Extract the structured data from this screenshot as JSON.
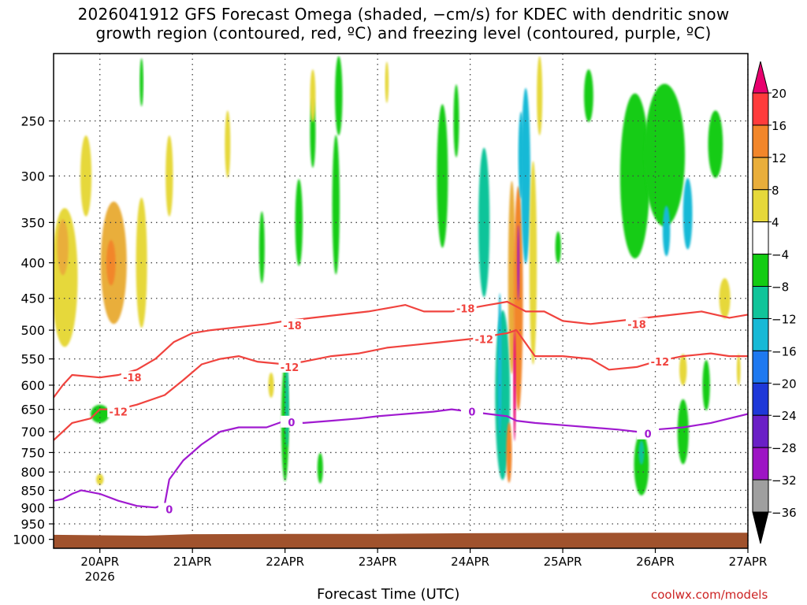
{
  "chart_data": {
    "type": "heatmap",
    "title_lines": [
      "2026041912 GFS Forecast Omega (shaded, −cm/s) for KDEC with dendritic snow",
      "growth region (contoured, red, ºC) and freezing level (contoured, purple, ºC)"
    ],
    "xlabel": "Forecast Time (UTC)",
    "credit": "coolwx.com/models",
    "x_range_days": [
      19.5,
      27.0
    ],
    "x_ticks": [
      {
        "day": 20,
        "label": "20APR",
        "sublabel": "2026"
      },
      {
        "day": 21,
        "label": "21APR"
      },
      {
        "day": 22,
        "label": "22APR"
      },
      {
        "day": 23,
        "label": "23APR"
      },
      {
        "day": 24,
        "label": "24APR"
      },
      {
        "day": 25,
        "label": "25APR"
      },
      {
        "day": 26,
        "label": "26APR"
      },
      {
        "day": 27,
        "label": "27APR"
      }
    ],
    "y_scale": "log-pressure",
    "y_range_hpa": [
      1030,
      200
    ],
    "y_ticks": [
      250,
      300,
      350,
      400,
      450,
      500,
      550,
      600,
      650,
      700,
      750,
      800,
      850,
      900,
      950,
      1000
    ],
    "grid": true,
    "colorbar": {
      "labels": [
        "20",
        "16",
        "12",
        "8",
        "4",
        "−4",
        "−8",
        "−12",
        "−16",
        "−20",
        "−24",
        "−28",
        "−32",
        "−36"
      ],
      "colors": [
        "#e8006e",
        "#ff3b3b",
        "#f2862a",
        "#e9ae3b",
        "#e6d83a",
        "#ffffff",
        "#13cc13",
        "#11c49a",
        "#17b9d6",
        "#1e79f0",
        "#1e38d8",
        "#6a1fc6",
        "#9d14c4",
        "#9f9f9f",
        "#000000"
      ]
    },
    "omega_blobs": [
      {
        "t": 19.62,
        "p": 420,
        "rx": 0.14,
        "dp": 190,
        "v": 7
      },
      {
        "t": 19.6,
        "p": 380,
        "rx": 0.06,
        "dp": 70,
        "v": 10
      },
      {
        "t": 20.15,
        "p": 400,
        "rx": 0.14,
        "dp": 160,
        "v": 8
      },
      {
        "t": 20.12,
        "p": 400,
        "rx": 0.05,
        "dp": 60,
        "v": 13
      },
      {
        "t": 20.45,
        "p": 400,
        "rx": 0.06,
        "dp": 170,
        "v": 5
      },
      {
        "t": 19.85,
        "p": 300,
        "rx": 0.06,
        "dp": 80,
        "v": 5
      },
      {
        "t": 20.75,
        "p": 300,
        "rx": 0.04,
        "dp": 80,
        "v": 5
      },
      {
        "t": 20.0,
        "p": 820,
        "rx": 0.04,
        "dp": 30,
        "v": 5
      },
      {
        "t": 20.0,
        "p": 660,
        "rx": 0.1,
        "dp": 40,
        "v": -6
      },
      {
        "t": 20.45,
        "p": 220,
        "rx": 0.02,
        "dp": 35,
        "v": -6
      },
      {
        "t": 21.38,
        "p": 270,
        "rx": 0.03,
        "dp": 60,
        "v": 5
      },
      {
        "t": 21.75,
        "p": 380,
        "rx": 0.03,
        "dp": 90,
        "v": -6
      },
      {
        "t": 22.0,
        "p": 680,
        "rx": 0.04,
        "dp": 260,
        "v": -7
      },
      {
        "t": 22.02,
        "p": 640,
        "rx": 0.02,
        "dp": 180,
        "v": -11
      },
      {
        "t": 21.85,
        "p": 600,
        "rx": 0.03,
        "dp": 50,
        "v": 5
      },
      {
        "t": 22.15,
        "p": 350,
        "rx": 0.04,
        "dp": 100,
        "v": -6
      },
      {
        "t": 22.3,
        "p": 260,
        "rx": 0.03,
        "dp": 60,
        "v": -6
      },
      {
        "t": 22.55,
        "p": 330,
        "rx": 0.04,
        "dp": 150,
        "v": -7
      },
      {
        "t": 22.58,
        "p": 230,
        "rx": 0.04,
        "dp": 60,
        "v": -6
      },
      {
        "t": 22.38,
        "p": 790,
        "rx": 0.03,
        "dp": 80,
        "v": -6
      },
      {
        "t": 22.3,
        "p": 230,
        "rx": 0.03,
        "dp": 40,
        "v": 5
      },
      {
        "t": 23.1,
        "p": 220,
        "rx": 0.02,
        "dp": 30,
        "v": 5
      },
      {
        "t": 23.7,
        "p": 300,
        "rx": 0.06,
        "dp": 140,
        "v": -7
      },
      {
        "t": 23.85,
        "p": 250,
        "rx": 0.03,
        "dp": 60,
        "v": -6
      },
      {
        "t": 24.15,
        "p": 350,
        "rx": 0.06,
        "dp": 170,
        "v": -8
      },
      {
        "t": 24.35,
        "p": 620,
        "rx": 0.08,
        "dp": 340,
        "v": -9
      },
      {
        "t": 24.32,
        "p": 560,
        "rx": 0.02,
        "dp": 260,
        "v": -15
      },
      {
        "t": 24.42,
        "p": 750,
        "rx": 0.03,
        "dp": 150,
        "v": 12
      },
      {
        "t": 24.45,
        "p": 420,
        "rx": 0.04,
        "dp": 260,
        "v": 10
      },
      {
        "t": 24.52,
        "p": 450,
        "rx": 0.05,
        "dp": 320,
        "v": 12
      },
      {
        "t": 24.55,
        "p": 280,
        "rx": 0.03,
        "dp": 80,
        "v": -14
      },
      {
        "t": 24.48,
        "p": 600,
        "rx": 0.015,
        "dp": 220,
        "v": 20
      },
      {
        "t": 24.52,
        "p": 400,
        "rx": 0.012,
        "dp": 100,
        "v": -30
      },
      {
        "t": 24.6,
        "p": 300,
        "rx": 0.05,
        "dp": 170,
        "v": -12
      },
      {
        "t": 24.68,
        "p": 400,
        "rx": 0.04,
        "dp": 260,
        "v": 5
      },
      {
        "t": 24.75,
        "p": 230,
        "rx": 0.03,
        "dp": 60,
        "v": 5
      },
      {
        "t": 24.95,
        "p": 380,
        "rx": 0.03,
        "dp": 40,
        "v": -6
      },
      {
        "t": 25.28,
        "p": 230,
        "rx": 0.05,
        "dp": 40,
        "v": -7
      },
      {
        "t": 25.78,
        "p": 300,
        "rx": 0.16,
        "dp": 160,
        "v": -6
      },
      {
        "t": 26.1,
        "p": 280,
        "rx": 0.22,
        "dp": 130,
        "v": -7
      },
      {
        "t": 26.35,
        "p": 340,
        "rx": 0.05,
        "dp": 80,
        "v": -13
      },
      {
        "t": 26.12,
        "p": 360,
        "rx": 0.04,
        "dp": 60,
        "v": -12
      },
      {
        "t": 26.65,
        "p": 270,
        "rx": 0.08,
        "dp": 60,
        "v": -6
      },
      {
        "t": 25.85,
        "p": 780,
        "rx": 0.08,
        "dp": 160,
        "v": -7
      },
      {
        "t": 25.85,
        "p": 750,
        "rx": 0.03,
        "dp": 60,
        "v": -11
      },
      {
        "t": 26.3,
        "p": 700,
        "rx": 0.06,
        "dp": 150,
        "v": -7
      },
      {
        "t": 26.75,
        "p": 450,
        "rx": 0.06,
        "dp": 60,
        "v": 5
      },
      {
        "t": 26.3,
        "p": 570,
        "rx": 0.04,
        "dp": 60,
        "v": 5
      },
      {
        "t": 26.55,
        "p": 600,
        "rx": 0.04,
        "dp": 100,
        "v": -7
      },
      {
        "t": 26.9,
        "p": 570,
        "rx": 0.02,
        "dp": 60,
        "v": 5
      }
    ],
    "contours": [
      {
        "label": "-18",
        "color": "#f0433e",
        "t": [
          19.5,
          19.6,
          19.7,
          20.0,
          20.2,
          20.4,
          20.6,
          20.8,
          21.0,
          21.2,
          21.5,
          21.8,
          22.0,
          22.3,
          22.6,
          22.9,
          23.1,
          23.3,
          23.5,
          23.8,
          24.0,
          24.2,
          24.4,
          24.6,
          24.8,
          25.0,
          25.3,
          25.6,
          25.9,
          26.2,
          26.5,
          26.8,
          27.0
        ],
        "p": [
          625,
          600,
          580,
          585,
          580,
          570,
          550,
          520,
          505,
          500,
          495,
          490,
          485,
          480,
          475,
          470,
          465,
          460,
          470,
          470,
          465,
          460,
          455,
          470,
          470,
          485,
          490,
          485,
          480,
          475,
          470,
          480,
          475
        ]
      },
      {
        "label": "-12",
        "color": "#f0433e",
        "t": [
          19.5,
          19.7,
          19.9,
          20.0,
          20.2,
          20.4,
          20.7,
          20.9,
          21.1,
          21.3,
          21.5,
          21.7,
          22.0,
          22.2,
          22.5,
          22.8,
          23.1,
          23.4,
          23.7,
          24.0,
          24.2,
          24.4,
          24.5,
          24.7,
          25.0,
          25.3,
          25.5,
          25.8,
          26.0,
          26.3,
          26.6,
          26.8,
          27.0
        ],
        "p": [
          720,
          680,
          670,
          650,
          650,
          640,
          620,
          590,
          560,
          550,
          545,
          555,
          560,
          555,
          545,
          540,
          530,
          525,
          520,
          515,
          510,
          505,
          500,
          545,
          545,
          550,
          570,
          565,
          555,
          545,
          540,
          545,
          545
        ]
      },
      {
        "label": "0",
        "color": "#a01ad0",
        "t": [
          19.5,
          19.6,
          19.7,
          19.8,
          20.0,
          20.2,
          20.4,
          20.6,
          20.7,
          20.75,
          20.9,
          21.1,
          21.3,
          21.5,
          21.8,
          22.0,
          22.2,
          22.5,
          22.8,
          23.0,
          23.3,
          23.6,
          23.8,
          24.0,
          24.2,
          24.4,
          24.5,
          24.7,
          25.0,
          25.3,
          25.6,
          25.8,
          26.0,
          26.3,
          26.6,
          26.8,
          27.0
        ],
        "p": [
          880,
          875,
          860,
          850,
          860,
          880,
          895,
          900,
          890,
          820,
          770,
          730,
          700,
          690,
          690,
          675,
          680,
          675,
          670,
          665,
          660,
          655,
          650,
          655,
          660,
          665,
          675,
          680,
          685,
          690,
          695,
          700,
          695,
          690,
          680,
          670,
          660
        ]
      }
    ],
    "contour_labels": [
      {
        "text": "-18",
        "t": 20.35,
        "p": 585,
        "color": "#f0433e"
      },
      {
        "text": "-12",
        "t": 20.2,
        "p": 655,
        "color": "#f0433e"
      },
      {
        "text": "-18",
        "t": 22.08,
        "p": 492,
        "color": "#f0433e"
      },
      {
        "text": "-12",
        "t": 22.05,
        "p": 565,
        "color": "#f0433e"
      },
      {
        "text": "0",
        "t": 22.07,
        "p": 678,
        "color": "#a01ad0"
      },
      {
        "text": "-18",
        "t": 23.95,
        "p": 465,
        "color": "#f0433e"
      },
      {
        "text": "-12",
        "t": 24.15,
        "p": 515,
        "color": "#f0433e"
      },
      {
        "text": "0",
        "t": 24.02,
        "p": 655,
        "color": "#a01ad0"
      },
      {
        "text": "0",
        "t": 20.75,
        "p": 905,
        "color": "#a01ad0"
      },
      {
        "text": "-18",
        "t": 25.8,
        "p": 490,
        "color": "#f0433e"
      },
      {
        "text": "-12",
        "t": 26.05,
        "p": 555,
        "color": "#f0433e"
      },
      {
        "text": "0",
        "t": 25.92,
        "p": 705,
        "color": "#a01ad0"
      }
    ],
    "terrain": {
      "color": "#a0522d",
      "t": [
        19.5,
        20.5,
        21.0,
        22.0,
        23.0,
        24.0,
        25.0,
        26.0,
        27.0
      ],
      "p": [
        985,
        988,
        983,
        982,
        982,
        980,
        979,
        978,
        978
      ]
    }
  }
}
